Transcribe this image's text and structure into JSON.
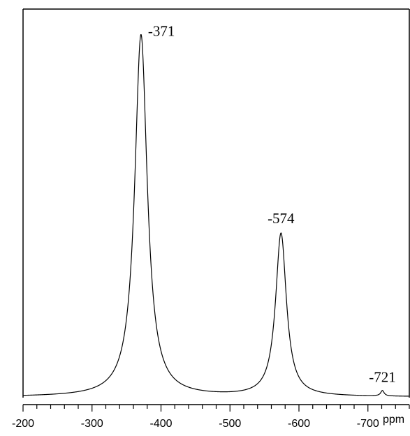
{
  "chart_data": {
    "type": "line",
    "title": "",
    "xlabel": "",
    "ylabel": "",
    "x_unit": "ppm",
    "xlim": [
      -200,
      -760
    ],
    "x_ticks": [
      -200,
      -300,
      -400,
      -500,
      -600,
      -700
    ],
    "x_tick_labels": [
      "-200",
      "-300",
      "-400",
      "-500",
      "-600",
      "-700"
    ],
    "ylim": [
      0,
      1.1
    ],
    "grid": false,
    "legend": "none",
    "peaks": [
      {
        "label": "-371",
        "x": -371,
        "height": 1.0,
        "hwhm": 11
      },
      {
        "label": "-574",
        "x": -574,
        "height": 0.45,
        "hwhm": 9.5
      },
      {
        "label": "-721",
        "x": -721,
        "height": 0.015,
        "hwhm": 3
      }
    ],
    "line_color": "#000000"
  }
}
